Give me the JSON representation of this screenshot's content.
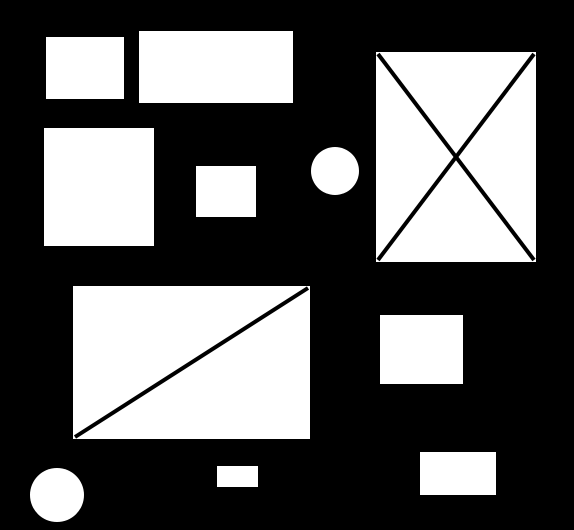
{
  "colors": {
    "background": "#000000",
    "shape_fill": "#ffffff",
    "line_stroke": "#000000"
  }
}
